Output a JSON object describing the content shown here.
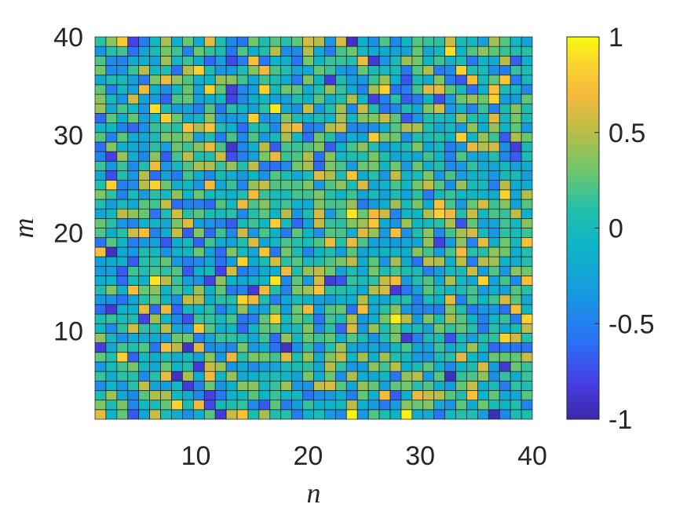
{
  "chart_data": {
    "type": "heatmap",
    "title": "",
    "xlabel": "n",
    "ylabel": "m",
    "xlim": [
      1,
      40
    ],
    "ylim": [
      1,
      40
    ],
    "n_cols": 40,
    "n_rows": 40,
    "x_ticks": [
      10,
      20,
      30,
      40
    ],
    "y_ticks": [
      10,
      20,
      30,
      40
    ],
    "colorbar": {
      "min": -1,
      "max": 1,
      "ticks": [
        1,
        0.5,
        0,
        -0.5,
        -1
      ],
      "tick_labels": [
        "1",
        "0.5",
        "0",
        "-0.5",
        "-1"
      ],
      "colormap": "parula"
    },
    "highlights": [
      {
        "n": 24,
        "m": 1,
        "value": 0.97
      },
      {
        "n": 29,
        "m": 1,
        "value": 0.97
      },
      {
        "n": 37,
        "m": 1,
        "value": -0.95
      },
      {
        "n": 28,
        "m": 11,
        "value": 0.95
      },
      {
        "n": 6,
        "m": 15,
        "value": 0.93
      },
      {
        "n": 17,
        "m": 15,
        "value": 0.92
      },
      {
        "n": 24,
        "m": 22,
        "value": 0.93
      },
      {
        "n": 17,
        "m": 33,
        "value": 0.93
      },
      {
        "n": 6,
        "m": 33,
        "value": 0.9
      },
      {
        "n": 8,
        "m": 5,
        "value": -0.92
      },
      {
        "n": 9,
        "m": 8,
        "value": -0.9
      },
      {
        "n": 18,
        "m": 8,
        "value": -0.9
      },
      {
        "n": 2,
        "m": 18,
        "value": -0.92
      },
      {
        "n": 15,
        "m": 14,
        "value": -0.85
      },
      {
        "n": 13,
        "m": 29,
        "value": -0.88
      },
      {
        "n": 24,
        "m": 40,
        "value": -0.92
      },
      {
        "n": 33,
        "m": 5,
        "value": -0.93
      },
      {
        "n": 38,
        "m": 6,
        "value": -0.85
      },
      {
        "n": 39,
        "m": 29,
        "value": -0.82
      },
      {
        "n": 33,
        "m": 39,
        "value": 0.9
      },
      {
        "n": 37,
        "m": 35,
        "value": 0.75
      },
      {
        "n": 35,
        "m": 36,
        "value": 0.72
      }
    ]
  }
}
